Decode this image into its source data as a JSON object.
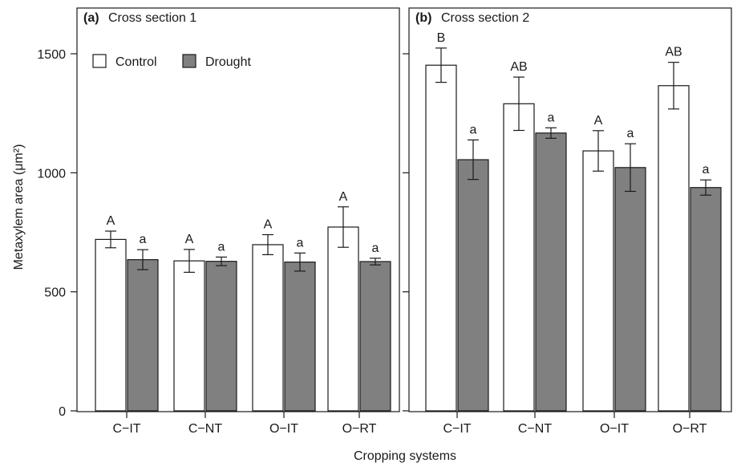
{
  "chart_data": {
    "type": "bar",
    "xlabel": "Cropping systems",
    "ylabel": "Metaxylem area (μm²)",
    "ylim": [
      0,
      1500
    ],
    "yticks": [
      0,
      500,
      1000,
      1500
    ],
    "legend": {
      "placement": "top-left",
      "entries": [
        {
          "name": "Control",
          "color": "#ffffff"
        },
        {
          "name": "Drought",
          "color": "#808080"
        }
      ]
    },
    "panels": [
      {
        "letter": "(a)",
        "title": "Cross section 1",
        "categories": [
          "C-IT",
          "C-NT",
          "O-IT",
          "O-RT"
        ],
        "series": [
          {
            "name": "Control",
            "values": [
              720,
              630,
              698,
              772
            ],
            "errors": [
              35,
              48,
              42,
              85
            ],
            "labels": [
              "A",
              "A",
              "A",
              "A"
            ]
          },
          {
            "name": "Drought",
            "values": [
              635,
              628,
              625,
              627
            ],
            "errors": [
              42,
              18,
              38,
              14
            ],
            "labels": [
              "a",
              "a",
              "a",
              "a"
            ]
          }
        ]
      },
      {
        "letter": "(b)",
        "title": "Cross section 2",
        "categories": [
          "C-IT",
          "C-NT",
          "O-IT",
          "O-RT"
        ],
        "series": [
          {
            "name": "Control",
            "values": [
              1452,
              1290,
              1092,
              1366
            ],
            "errors": [
              72,
              112,
              85,
              98
            ],
            "labels": [
              "B",
              "AB",
              "A",
              "AB"
            ]
          },
          {
            "name": "Drought",
            "values": [
              1055,
              1167,
              1022,
              938
            ],
            "errors": [
              83,
              22,
              100,
              32
            ],
            "labels": [
              "a",
              "a",
              "a",
              "a"
            ]
          }
        ]
      }
    ]
  }
}
